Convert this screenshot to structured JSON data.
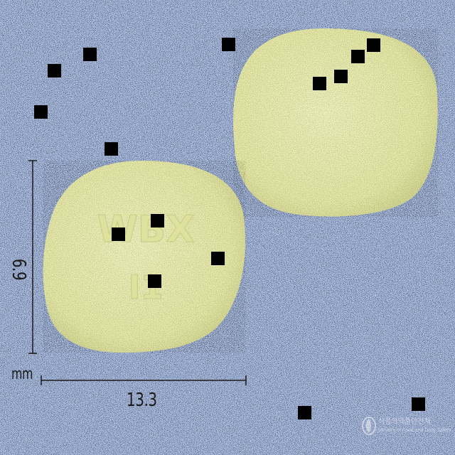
{
  "image": {
    "subject": "two yellow tablets on a blue speckled background",
    "background_color": "#9fb7e6",
    "tablet_color": "#eef0b3"
  },
  "imprint": {
    "line1": "WBX",
    "line2": "I1"
  },
  "dimensions": {
    "unit": "mm",
    "width": "13.3",
    "height": "6.9"
  },
  "watermark": {
    "text_line1": "식품의약품안전처",
    "text_line2": "Ministry of Food and Drug Safety"
  }
}
